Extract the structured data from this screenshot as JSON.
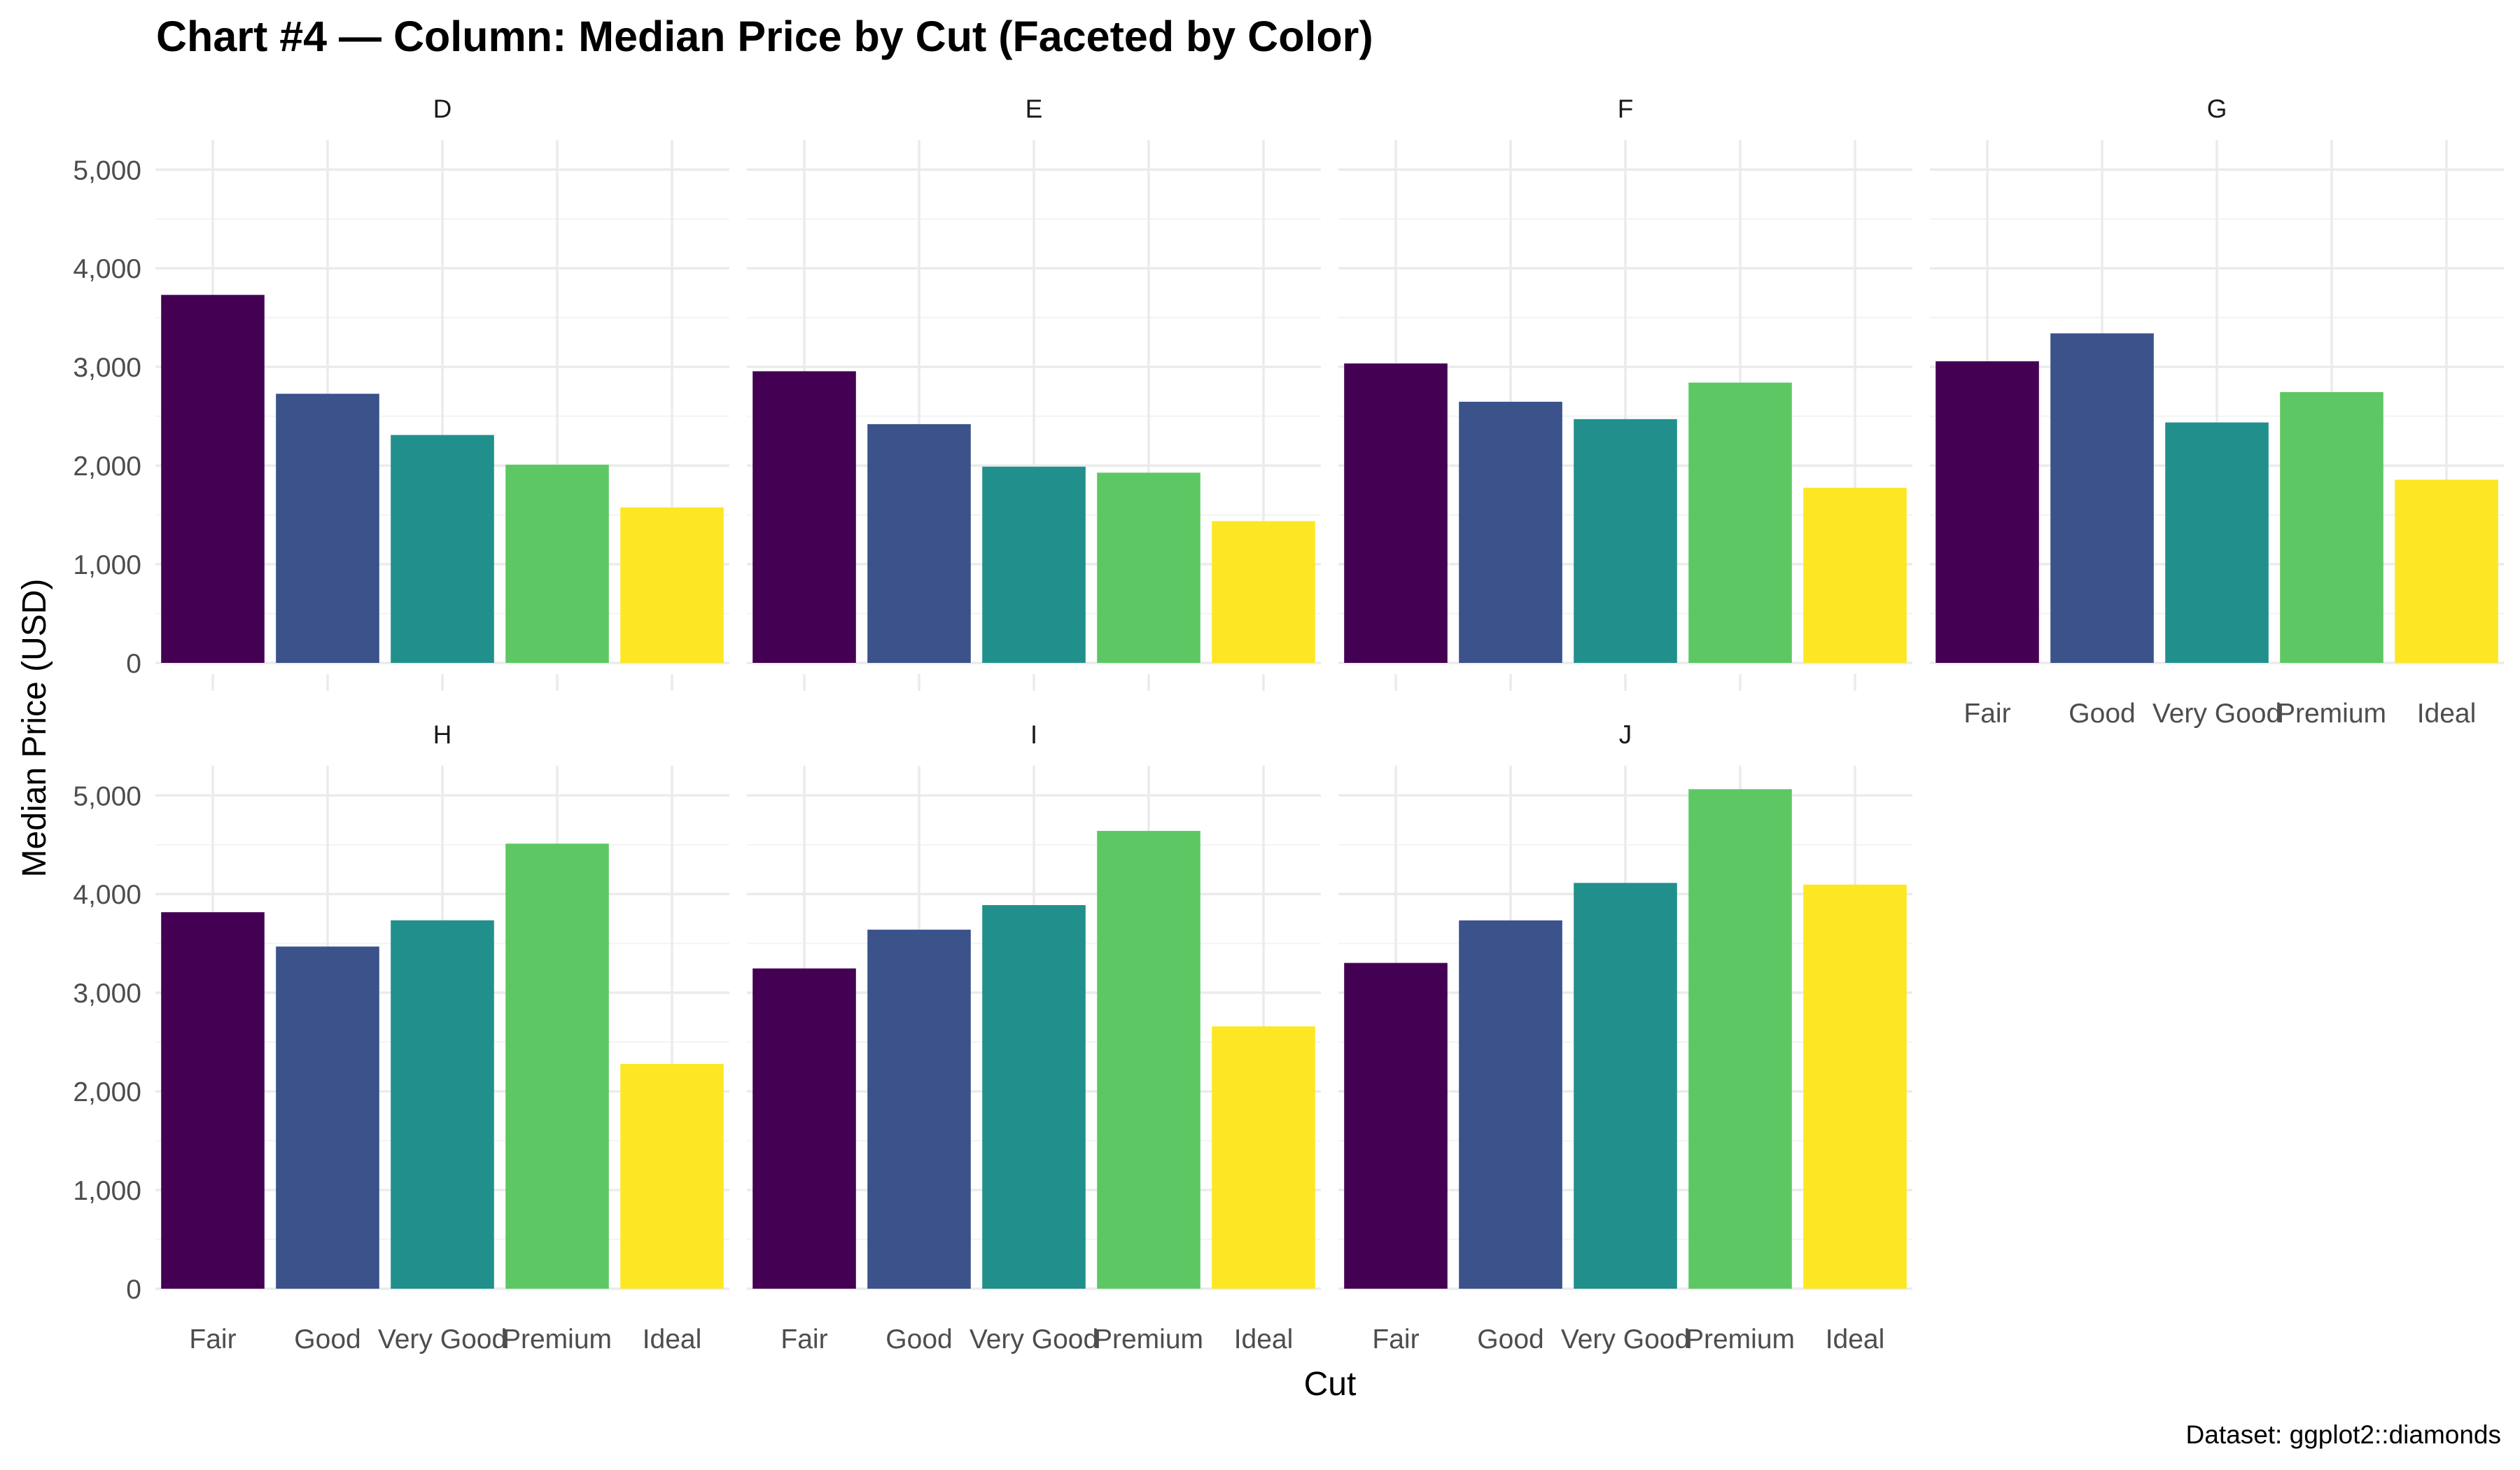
{
  "chart_data": {
    "type": "bar",
    "title": "Chart #4 — Column: Median Price by Cut (Faceted by Color)",
    "xlabel": "Cut",
    "ylabel": "Median Price (USD)",
    "caption": "Dataset: ggplot2::diamonds",
    "categories": [
      "Fair",
      "Good",
      "Very Good",
      "Premium",
      "Ideal"
    ],
    "category_colors": [
      "#440154",
      "#3b528b",
      "#21908c",
      "#5dc863",
      "#fde725"
    ],
    "ylim": [
      0,
      5300
    ],
    "yticks": [
      0,
      1000,
      2000,
      3000,
      4000,
      5000
    ],
    "ytick_labels": [
      "0",
      "1,000",
      "2,000",
      "3,000",
      "4,000",
      "5,000"
    ],
    "grid": true,
    "legend": "none",
    "facets": [
      {
        "name": "D",
        "values": [
          3730,
          2728,
          2310,
          2009,
          1576
        ]
      },
      {
        "name": "E",
        "values": [
          2956,
          2420,
          1989,
          1928,
          1437
        ]
      },
      {
        "name": "F",
        "values": [
          3035,
          2647,
          2471,
          2841,
          1775
        ]
      },
      {
        "name": "G",
        "values": [
          3057,
          3340,
          2437,
          2745,
          1857
        ]
      },
      {
        "name": "H",
        "values": [
          3816,
          3468,
          3734,
          4511,
          2278
        ]
      },
      {
        "name": "I",
        "values": [
          3246,
          3639,
          3888,
          4640,
          2659
        ]
      },
      {
        "name": "J",
        "values": [
          3302,
          3733,
          4113,
          5063,
          4096
        ]
      }
    ]
  }
}
